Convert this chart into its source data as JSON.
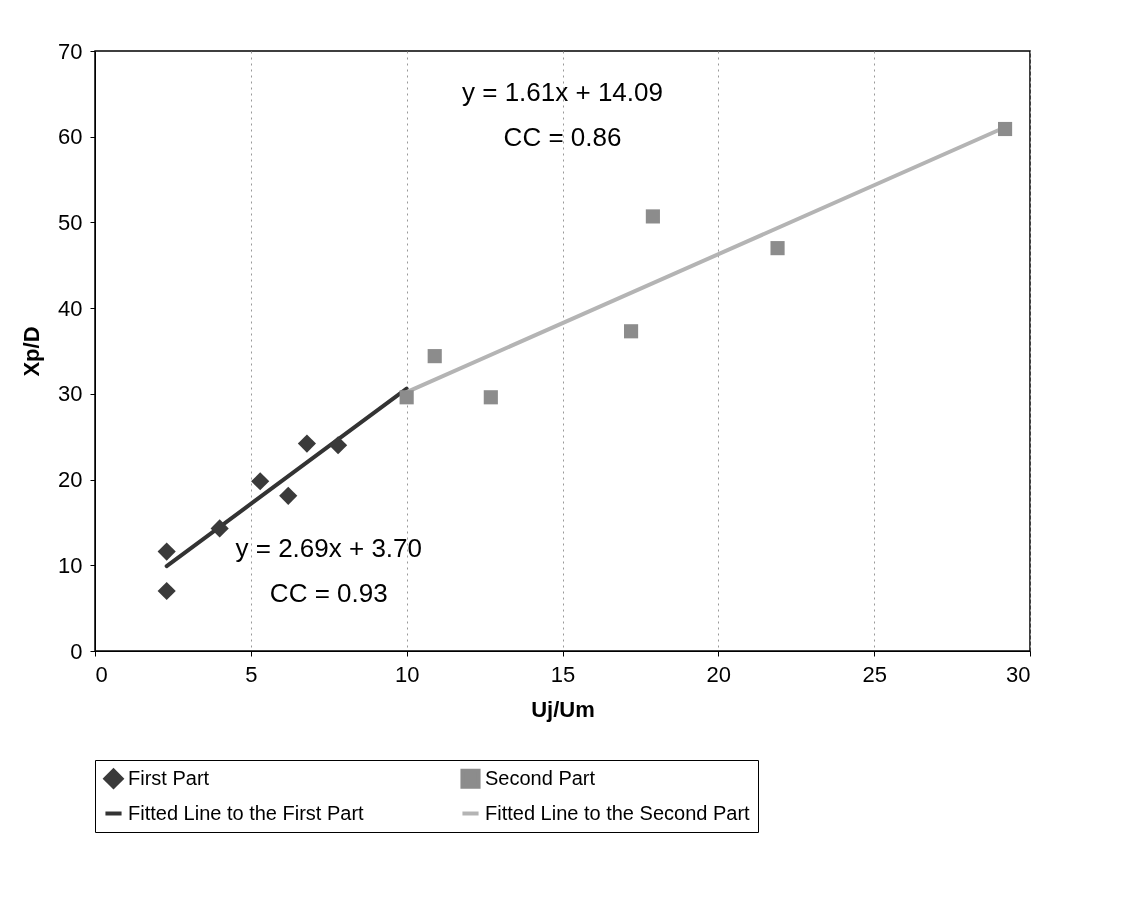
{
  "chart_data": {
    "type": "scatter",
    "xlabel": "Uj/Um",
    "ylabel": "Xp/D",
    "xlim": [
      0,
      30
    ],
    "xticks": [
      0,
      5,
      10,
      15,
      20,
      25,
      30
    ],
    "ylim": [
      0,
      70
    ],
    "yticks": [
      0,
      10,
      20,
      30,
      40,
      50,
      60,
      70
    ],
    "grid": "x",
    "legend": "bottom",
    "series": [
      {
        "name": "First Part",
        "type": "scatter",
        "marker": "diamond",
        "color": "#3a3a3a",
        "x": [
          2.3,
          2.3,
          4.0,
          5.3,
          6.2,
          6.8,
          7.8
        ],
        "values": [
          11.6,
          7.0,
          14.3,
          19.8,
          18.1,
          24.2,
          24.0
        ]
      },
      {
        "name": "Second Part",
        "type": "scatter",
        "marker": "square",
        "color": "#8c8c8c",
        "x": [
          10.0,
          10.9,
          12.7,
          17.2,
          17.9,
          21.9,
          29.2
        ],
        "values": [
          29.6,
          34.4,
          29.6,
          37.3,
          50.7,
          47.0,
          60.9
        ]
      },
      {
        "name": "Fitted Line to the First Part",
        "type": "line",
        "marker": "none",
        "color": "#333333",
        "x": [
          2.3,
          10.0
        ],
        "values": [
          9.9,
          30.6
        ]
      },
      {
        "name": "Fitted Line to the Second Part",
        "type": "line",
        "marker": "none",
        "color": "#b4b4b4",
        "x": [
          10.0,
          29.2
        ],
        "values": [
          30.2,
          61.1
        ]
      }
    ],
    "annotations": [
      "y = 1.61x + 14.09",
      "CC = 0.86",
      "y = 2.69x + 3.70",
      "CC = 0.93"
    ]
  }
}
